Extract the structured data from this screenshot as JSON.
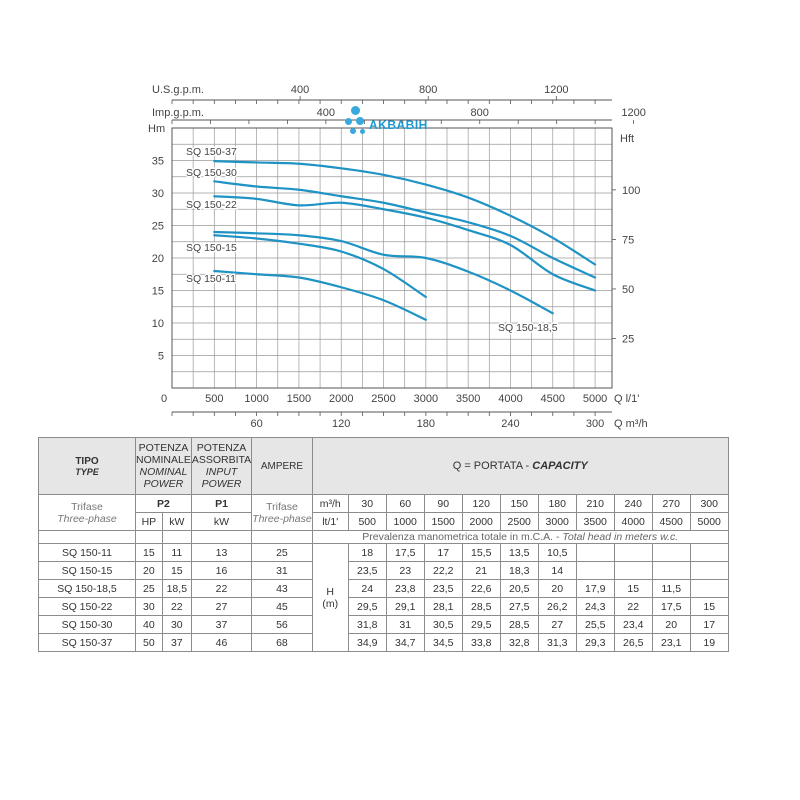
{
  "chart_data": {
    "type": "line",
    "xlabel_bottom": "Q l/1'",
    "xlabel_m3h": "Q m³/h",
    "xlabel_usgpm": "U.S.g.p.m.",
    "xlabel_impgpm": "Imp.g.p.m.",
    "ylabel_left": "Hm",
    "ylabel_right": "Hft",
    "xlim": [
      0,
      5200
    ],
    "ylim": [
      0,
      40
    ],
    "x_ticks": [
      "0",
      "500",
      "1000",
      "1500",
      "2000",
      "2500",
      "3000",
      "3500",
      "4000",
      "4500",
      "5000"
    ],
    "x_tick_values": [
      0,
      500,
      1000,
      1500,
      2000,
      2500,
      3000,
      3500,
      4000,
      4500,
      5000
    ],
    "y_ticks": [
      "5",
      "10",
      "15",
      "20",
      "25",
      "30",
      "35"
    ],
    "y_tick_values": [
      5,
      10,
      15,
      20,
      25,
      30,
      35
    ],
    "m3h_ticks": [
      "60",
      "120",
      "180",
      "240",
      "300"
    ],
    "m3h_tick_values": [
      60,
      120,
      180,
      240,
      300
    ],
    "usgpm_ticks": [
      "400",
      "800",
      "1200"
    ],
    "usgpm_tick_values": [
      400,
      800,
      1200
    ],
    "impgpm_ticks": [
      "400",
      "800",
      "1200"
    ],
    "impgpm_tick_values": [
      400,
      800,
      1200
    ],
    "hft_ticks": [
      "25",
      "50",
      "75",
      "100"
    ],
    "hft_tick_values": [
      25,
      50,
      75,
      100
    ],
    "series": [
      {
        "name": "SQ 150-37",
        "x": [
          500,
          1000,
          1500,
          2000,
          2500,
          3000,
          3500,
          4000,
          4500,
          5000
        ],
        "values": [
          34.9,
          34.7,
          34.5,
          33.8,
          32.8,
          31.3,
          29.3,
          26.5,
          23.1,
          19
        ]
      },
      {
        "name": "SQ 150-30",
        "x": [
          500,
          1000,
          1500,
          2000,
          2500,
          3000,
          3500,
          4000,
          4500,
          5000
        ],
        "values": [
          31.8,
          31,
          30.5,
          29.5,
          28.5,
          27,
          25.5,
          23.4,
          20,
          17
        ]
      },
      {
        "name": "SQ 150-22",
        "x": [
          500,
          1000,
          1500,
          2000,
          2500,
          3000,
          3500,
          4000,
          4500,
          5000
        ],
        "values": [
          29.5,
          29.1,
          28.1,
          28.5,
          27.5,
          26.2,
          24.3,
          22,
          17.5,
          15
        ]
      },
      {
        "name": "SQ 150-18,5",
        "x": [
          500,
          1000,
          1500,
          2000,
          2500,
          3000,
          3500,
          4000,
          4500
        ],
        "values": [
          24,
          23.8,
          23.5,
          22.6,
          20.5,
          20,
          17.9,
          15,
          11.5
        ]
      },
      {
        "name": "SQ 150-15",
        "x": [
          500,
          1000,
          1500,
          2000,
          2500,
          3000
        ],
        "values": [
          23.5,
          23,
          22.2,
          21,
          18.3,
          14
        ]
      },
      {
        "name": "SQ 150-11",
        "x": [
          500,
          1000,
          1500,
          2000,
          2500,
          3000
        ],
        "values": [
          18,
          17.5,
          17,
          15.5,
          13.5,
          10.5
        ]
      }
    ],
    "curve_color": "#1f93c4",
    "grid": true
  },
  "logo": {
    "text": "AKBABIH"
  },
  "table": {
    "tipo": "TIPO",
    "type_en": "TYPE",
    "potenza_nom": [
      "POTENZA",
      "NOMINALE"
    ],
    "nominal_power": [
      "NOMINAL",
      "POWER"
    ],
    "potenza_ass": [
      "POTENZA",
      "ASSORBITA"
    ],
    "input_power": [
      "INPUT",
      "POWER"
    ],
    "ampere": "AMPERE",
    "q_title": "Q = PORTATA - ",
    "q_title_en": "CAPACITY",
    "trifase": "Trifase",
    "three_phase": "Three-phase",
    "p2": "P2",
    "p1": "P1",
    "hp": "HP",
    "kw": "kW",
    "kw2": "kW",
    "unit_m3h": "m³/h",
    "unit_lt": "lt/1'",
    "m3h_values": [
      "30",
      "60",
      "90",
      "120",
      "150",
      "180",
      "210",
      "240",
      "270",
      "300"
    ],
    "lt_values": [
      "500",
      "1000",
      "1500",
      "2000",
      "2500",
      "3000",
      "3500",
      "4000",
      "4500",
      "5000"
    ],
    "prevalenza": "Prevalenza manometrica totale in m.C.A. - ",
    "total_head": "Total head in meters w.c.",
    "h_label": "H",
    "h_unit": "(m)",
    "rows": [
      {
        "model": "SQ 150-11",
        "hp": "15",
        "kw": "11",
        "p1": "13",
        "amp": "25",
        "h": [
          "18",
          "17,5",
          "17",
          "15,5",
          "13,5",
          "10,5",
          "",
          "",
          "",
          ""
        ]
      },
      {
        "model": "SQ 150-15",
        "hp": "20",
        "kw": "15",
        "p1": "16",
        "amp": "31",
        "h": [
          "23,5",
          "23",
          "22,2",
          "21",
          "18,3",
          "14",
          "",
          "",
          "",
          ""
        ]
      },
      {
        "model": "SQ 150-18,5",
        "hp": "25",
        "kw": "18,5",
        "p1": "22",
        "amp": "43",
        "h": [
          "24",
          "23,8",
          "23,5",
          "22,6",
          "20,5",
          "20",
          "17,9",
          "15",
          "11,5",
          ""
        ]
      },
      {
        "model": "SQ 150-22",
        "hp": "30",
        "kw": "22",
        "p1": "27",
        "amp": "45",
        "h": [
          "29,5",
          "29,1",
          "28,1",
          "28,5",
          "27,5",
          "26,2",
          "24,3",
          "22",
          "17,5",
          "15"
        ]
      },
      {
        "model": "SQ 150-30",
        "hp": "40",
        "kw": "30",
        "p1": "37",
        "amp": "56",
        "h": [
          "31,8",
          "31",
          "30,5",
          "29,5",
          "28,5",
          "27",
          "25,5",
          "23,4",
          "20",
          "17"
        ]
      },
      {
        "model": "SQ 150-37",
        "hp": "50",
        "kw": "37",
        "p1": "46",
        "amp": "68",
        "h": [
          "34,9",
          "34,7",
          "34,5",
          "33,8",
          "32,8",
          "31,3",
          "29,3",
          "26,5",
          "23,1",
          "19"
        ]
      }
    ]
  }
}
